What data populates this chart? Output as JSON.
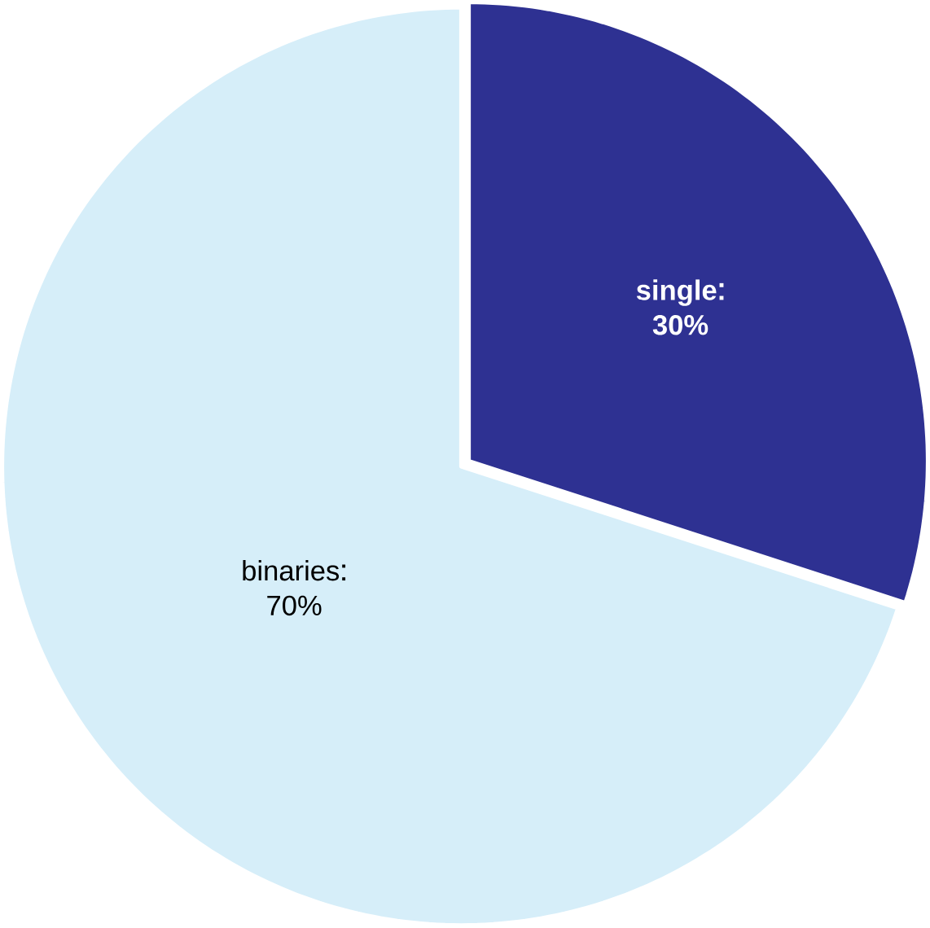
{
  "chart_data": {
    "type": "pie",
    "categories": [
      "single",
      "binaries"
    ],
    "values": [
      30,
      70
    ],
    "colors": [
      "#2e3192",
      "#d6eef9"
    ],
    "value_labels": [
      "30%",
      "70%"
    ]
  }
}
